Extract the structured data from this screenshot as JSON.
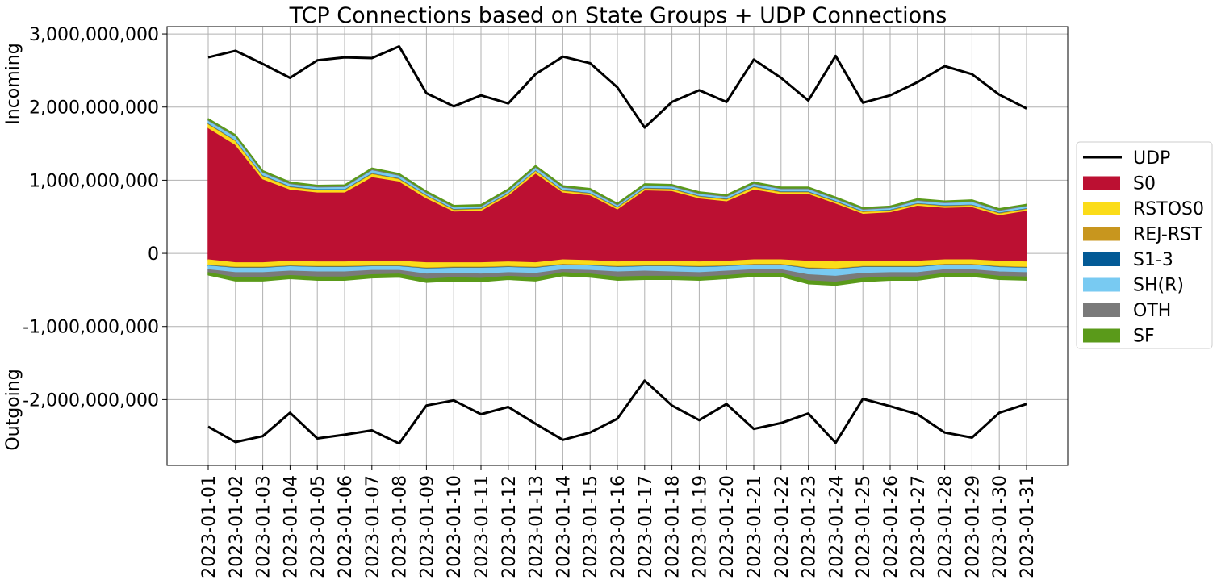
{
  "chart_data": {
    "type": "area",
    "title": "TCP Connections based on State Groups + UDP Connections",
    "ylabel_top": "Incoming",
    "ylabel_bottom": "Outgoing",
    "ylim": [
      -2900000000,
      3100000000
    ],
    "yticks": [
      3000000000,
      2000000000,
      1000000000,
      0,
      -1000000000,
      -2000000000
    ],
    "ytick_labels": [
      "3,000,000,000",
      "2,000,000,000",
      "1,000,000,000",
      "0",
      "-1,000,000,000",
      "-2,000,000,000"
    ],
    "grid": true,
    "legend_position": "right",
    "x": [
      "2023-01-01",
      "2023-01-02",
      "2023-01-03",
      "2023-01-04",
      "2023-01-05",
      "2023-01-06",
      "2023-01-07",
      "2023-01-08",
      "2023-01-09",
      "2023-01-10",
      "2023-01-11",
      "2023-01-12",
      "2023-01-13",
      "2023-01-14",
      "2023-01-15",
      "2023-01-16",
      "2023-01-17",
      "2023-01-18",
      "2023-01-19",
      "2023-01-20",
      "2023-01-21",
      "2023-01-22",
      "2023-01-23",
      "2023-01-24",
      "2023-01-25",
      "2023-01-26",
      "2023-01-27",
      "2023-01-28",
      "2023-01-29",
      "2023-01-30",
      "2023-01-31"
    ],
    "udp": {
      "name": "UDP",
      "color": "#000000",
      "incoming": [
        2680000000,
        2770000000,
        2590000000,
        2400000000,
        2640000000,
        2680000000,
        2670000000,
        2830000000,
        2190000000,
        2010000000,
        2160000000,
        2050000000,
        2450000000,
        2690000000,
        2600000000,
        2270000000,
        1720000000,
        2070000000,
        2230000000,
        2070000000,
        2650000000,
        2400000000,
        2090000000,
        2700000000,
        2060000000,
        2160000000,
        2340000000,
        2560000000,
        2450000000,
        2170000000,
        1980000000
      ],
      "outgoing": [
        -2370000000,
        -2580000000,
        -2500000000,
        -2180000000,
        -2530000000,
        -2480000000,
        -2420000000,
        -2600000000,
        -2080000000,
        -2010000000,
        -2200000000,
        -2100000000,
        -2330000000,
        -2550000000,
        -2450000000,
        -2260000000,
        -1740000000,
        -2080000000,
        -2280000000,
        -2060000000,
        -2400000000,
        -2320000000,
        -2190000000,
        -2590000000,
        -1990000000,
        -2090000000,
        -2200000000,
        -2450000000,
        -2520000000,
        -2180000000,
        -2060000000
      ]
    },
    "series": [
      {
        "name": "S0",
        "color": "#bc1032",
        "incoming": [
          1720000000,
          1490000000,
          1020000000,
          880000000,
          840000000,
          840000000,
          1050000000,
          990000000,
          760000000,
          580000000,
          590000000,
          800000000,
          1100000000,
          840000000,
          800000000,
          610000000,
          870000000,
          860000000,
          760000000,
          720000000,
          880000000,
          820000000,
          820000000,
          690000000,
          550000000,
          570000000,
          660000000,
          630000000,
          640000000,
          530000000,
          590000000
        ],
        "outgoing": [
          -90000000,
          -130000000,
          -130000000,
          -110000000,
          -120000000,
          -120000000,
          -110000000,
          -110000000,
          -130000000,
          -130000000,
          -130000000,
          -120000000,
          -130000000,
          -90000000,
          -100000000,
          -120000000,
          -110000000,
          -110000000,
          -120000000,
          -110000000,
          -90000000,
          -90000000,
          -110000000,
          -120000000,
          -110000000,
          -110000000,
          -110000000,
          -90000000,
          -90000000,
          -110000000,
          -120000000
        ]
      },
      {
        "name": "RSTOS0",
        "color": "#fbdc19",
        "incoming": [
          50000000,
          50000000,
          40000000,
          30000000,
          30000000,
          30000000,
          40000000,
          30000000,
          30000000,
          20000000,
          20000000,
          20000000,
          30000000,
          20000000,
          20000000,
          20000000,
          20000000,
          20000000,
          20000000,
          20000000,
          30000000,
          20000000,
          20000000,
          20000000,
          20000000,
          20000000,
          20000000,
          20000000,
          20000000,
          20000000,
          20000000
        ],
        "outgoing": [
          -70000000,
          -60000000,
          -60000000,
          -60000000,
          -60000000,
          -60000000,
          -60000000,
          -60000000,
          -70000000,
          -60000000,
          -60000000,
          -60000000,
          -60000000,
          -60000000,
          -60000000,
          -60000000,
          -60000000,
          -60000000,
          -60000000,
          -60000000,
          -60000000,
          -60000000,
          -90000000,
          -90000000,
          -70000000,
          -70000000,
          -70000000,
          -60000000,
          -60000000,
          -70000000,
          -70000000
        ]
      },
      {
        "name": "REJ-RST",
        "color": "#c8961e",
        "incoming": [
          10000000,
          10000000,
          10000000,
          10000000,
          10000000,
          10000000,
          10000000,
          10000000,
          10000000,
          10000000,
          10000000,
          10000000,
          10000000,
          10000000,
          10000000,
          10000000,
          10000000,
          10000000,
          10000000,
          10000000,
          10000000,
          10000000,
          10000000,
          10000000,
          10000000,
          10000000,
          10000000,
          10000000,
          10000000,
          10000000,
          10000000
        ],
        "outgoing": [
          -10000000,
          -10000000,
          -10000000,
          -10000000,
          -10000000,
          -10000000,
          -10000000,
          -10000000,
          -10000000,
          -10000000,
          -10000000,
          -10000000,
          -10000000,
          -10000000,
          -10000000,
          -10000000,
          -10000000,
          -10000000,
          -10000000,
          -10000000,
          -10000000,
          -10000000,
          -10000000,
          -10000000,
          -10000000,
          -10000000,
          -10000000,
          -10000000,
          -10000000,
          -10000000,
          -10000000
        ]
      },
      {
        "name": "S1-3",
        "color": "#035a96",
        "incoming": [
          5000000,
          5000000,
          5000000,
          5000000,
          5000000,
          5000000,
          5000000,
          5000000,
          5000000,
          5000000,
          5000000,
          5000000,
          5000000,
          5000000,
          5000000,
          5000000,
          5000000,
          5000000,
          5000000,
          5000000,
          5000000,
          5000000,
          5000000,
          5000000,
          5000000,
          5000000,
          5000000,
          5000000,
          5000000,
          5000000,
          5000000
        ],
        "outgoing": [
          -5000000,
          -5000000,
          -5000000,
          -5000000,
          -5000000,
          -5000000,
          -5000000,
          -5000000,
          -5000000,
          -5000000,
          -5000000,
          -5000000,
          -5000000,
          -5000000,
          -5000000,
          -5000000,
          -5000000,
          -5000000,
          -5000000,
          -5000000,
          -5000000,
          -5000000,
          -5000000,
          -5000000,
          -5000000,
          -5000000,
          -5000000,
          -5000000,
          -5000000,
          -5000000,
          -5000000
        ]
      },
      {
        "name": "SH(R)",
        "color": "#78caf2",
        "incoming": [
          35000000,
          45000000,
          35000000,
          30000000,
          25000000,
          30000000,
          40000000,
          35000000,
          25000000,
          20000000,
          20000000,
          25000000,
          35000000,
          30000000,
          30000000,
          20000000,
          25000000,
          25000000,
          25000000,
          25000000,
          30000000,
          30000000,
          30000000,
          25000000,
          20000000,
          20000000,
          30000000,
          30000000,
          35000000,
          25000000,
          25000000
        ],
        "outgoing": [
          -50000000,
          -60000000,
          -60000000,
          -60000000,
          -60000000,
          -60000000,
          -50000000,
          -50000000,
          -70000000,
          -70000000,
          -80000000,
          -70000000,
          -70000000,
          -60000000,
          -60000000,
          -60000000,
          -60000000,
          -70000000,
          -70000000,
          -60000000,
          -60000000,
          -60000000,
          -80000000,
          -90000000,
          -80000000,
          -70000000,
          -70000000,
          -60000000,
          -60000000,
          -60000000,
          -60000000
        ]
      },
      {
        "name": "OTH",
        "color": "#7a7a7a",
        "incoming": [
          10000000,
          10000000,
          10000000,
          10000000,
          10000000,
          10000000,
          10000000,
          10000000,
          10000000,
          10000000,
          10000000,
          10000000,
          10000000,
          10000000,
          10000000,
          10000000,
          10000000,
          10000000,
          10000000,
          10000000,
          10000000,
          10000000,
          10000000,
          10000000,
          10000000,
          10000000,
          10000000,
          10000000,
          10000000,
          10000000,
          10000000
        ],
        "outgoing": [
          -40000000,
          -70000000,
          -70000000,
          -60000000,
          -70000000,
          -70000000,
          -60000000,
          -50000000,
          -70000000,
          -60000000,
          -60000000,
          -50000000,
          -60000000,
          -40000000,
          -50000000,
          -70000000,
          -70000000,
          -60000000,
          -60000000,
          -60000000,
          -50000000,
          -50000000,
          -80000000,
          -80000000,
          -70000000,
          -60000000,
          -60000000,
          -50000000,
          -50000000,
          -60000000,
          -60000000
        ]
      },
      {
        "name": "SF",
        "color": "#5a9a1a",
        "incoming": [
          10000000,
          10000000,
          10000000,
          10000000,
          10000000,
          10000000,
          10000000,
          10000000,
          10000000,
          10000000,
          10000000,
          10000000,
          10000000,
          10000000,
          10000000,
          10000000,
          10000000,
          10000000,
          10000000,
          10000000,
          10000000,
          10000000,
          10000000,
          10000000,
          10000000,
          10000000,
          10000000,
          10000000,
          10000000,
          10000000,
          10000000
        ],
        "outgoing": [
          -30000000,
          -40000000,
          -40000000,
          -40000000,
          -40000000,
          -40000000,
          -40000000,
          -40000000,
          -40000000,
          -40000000,
          -40000000,
          -40000000,
          -40000000,
          -40000000,
          -40000000,
          -40000000,
          -40000000,
          -40000000,
          -40000000,
          -40000000,
          -40000000,
          -40000000,
          -40000000,
          -40000000,
          -40000000,
          -40000000,
          -40000000,
          -40000000,
          -40000000,
          -40000000,
          -40000000
        ]
      }
    ]
  }
}
